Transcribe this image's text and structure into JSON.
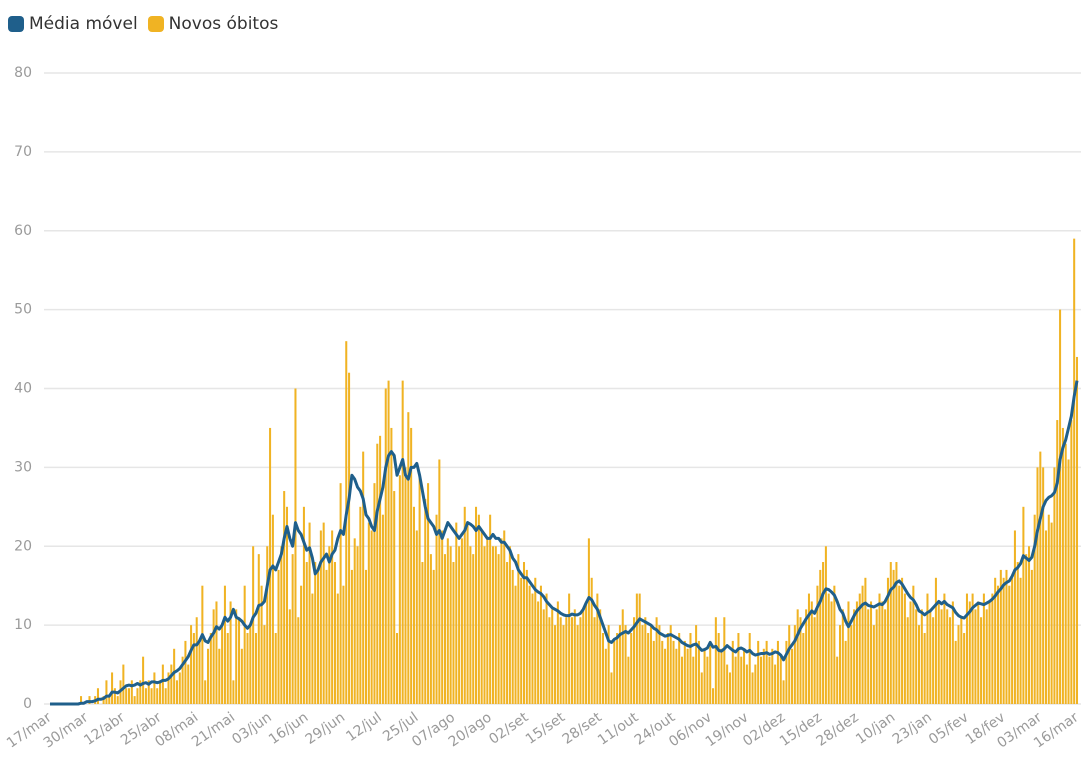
{
  "chart_data": {
    "type": "bar-line",
    "categories": [
      "17/mar",
      null,
      null,
      null,
      null,
      null,
      null,
      null,
      null,
      null,
      null,
      null,
      null,
      "30/mar",
      null,
      null,
      null,
      null,
      null,
      null,
      null,
      null,
      null,
      null,
      null,
      null,
      "12/abr",
      null,
      null,
      null,
      null,
      null,
      null,
      null,
      null,
      null,
      null,
      null,
      null,
      "25/abr",
      null,
      null,
      null,
      null,
      null,
      null,
      null,
      null,
      null,
      null,
      null,
      null,
      "08/mai",
      null,
      null,
      null,
      null,
      null,
      null,
      null,
      null,
      null,
      null,
      null,
      null,
      "21/mai",
      null,
      null,
      null,
      null,
      null,
      null,
      null,
      null,
      null,
      null,
      null,
      null,
      "03/jun",
      null,
      null,
      null,
      null,
      null,
      null,
      null,
      null,
      null,
      null,
      null,
      null,
      "16/jun",
      null,
      null,
      null,
      null,
      null,
      null,
      null,
      null,
      null,
      null,
      null,
      null,
      "29/jun",
      null,
      null,
      null,
      null,
      null,
      null,
      null,
      null,
      null,
      null,
      null,
      null,
      "12/jul",
      null,
      null,
      null,
      null,
      null,
      null,
      null,
      null,
      null,
      null,
      null,
      null,
      "25/jul",
      null,
      null,
      null,
      null,
      null,
      null,
      null,
      null,
      null,
      null,
      null,
      null,
      "07/ago",
      null,
      null,
      null,
      null,
      null,
      null,
      null,
      null,
      null,
      null,
      null,
      null,
      "20/ago",
      null,
      null,
      null,
      null,
      null,
      null,
      null,
      null,
      null,
      null,
      null,
      null,
      "02/set",
      null,
      null,
      null,
      null,
      null,
      null,
      null,
      null,
      null,
      null,
      null,
      null,
      "15/set",
      null,
      null,
      null,
      null,
      null,
      null,
      null,
      null,
      null,
      null,
      null,
      null,
      "28/set",
      null,
      null,
      null,
      null,
      null,
      null,
      null,
      null,
      null,
      null,
      null,
      null,
      "11/out",
      null,
      null,
      null,
      null,
      null,
      null,
      null,
      null,
      null,
      null,
      null,
      null,
      "24/out",
      null,
      null,
      null,
      null,
      null,
      null,
      null,
      null,
      null,
      null,
      null,
      null,
      "06/nov",
      null,
      null,
      null,
      null,
      null,
      null,
      null,
      null,
      null,
      null,
      null,
      null,
      "19/nov",
      null,
      null,
      null,
      null,
      null,
      null,
      null,
      null,
      null,
      null,
      null,
      null,
      "02/dez",
      null,
      null,
      null,
      null,
      null,
      null,
      null,
      null,
      null,
      null,
      null,
      null,
      "15/dez",
      null,
      null,
      null,
      null,
      null,
      null,
      null,
      null,
      null,
      null,
      null,
      null,
      "28/dez",
      null,
      null,
      null,
      null,
      null,
      null,
      null,
      null,
      null,
      null,
      null,
      null,
      "10/jan",
      null,
      null,
      null,
      null,
      null,
      null,
      null,
      null,
      null,
      null,
      null,
      null,
      "23/jan",
      null,
      null,
      null,
      null,
      null,
      null,
      null,
      null,
      null,
      null,
      null,
      null,
      "05/fev",
      null,
      null,
      null,
      null,
      null,
      null,
      null,
      null,
      null,
      null,
      null,
      null,
      "18/fev",
      null,
      null,
      null,
      null,
      null,
      null,
      null,
      null,
      null,
      null,
      null,
      null,
      "03/mar",
      null,
      null,
      null,
      null,
      null,
      null,
      null,
      null,
      null,
      null,
      null,
      null,
      "16/mar"
    ],
    "series": [
      {
        "name": "Média móvel",
        "type": "line",
        "color": "#1f5f8b",
        "values": [
          0,
          0,
          0,
          0,
          0,
          0,
          0,
          0,
          0,
          0,
          0,
          0.1,
          0.1,
          0.3,
          0.3,
          0.3,
          0.4,
          0.6,
          0.6,
          0.7,
          1,
          1,
          1.5,
          1.5,
          1.4,
          1.7,
          2,
          2.3,
          2.4,
          2.3,
          2.4,
          2.6,
          2.4,
          2.6,
          2.7,
          2.5,
          2.8,
          2.8,
          2.7,
          2.8,
          3,
          3,
          3.2,
          3.6,
          4,
          4.2,
          4.5,
          5,
          5.5,
          6,
          6.8,
          7.5,
          7.5,
          8,
          8.8,
          8,
          7.8,
          8.5,
          9,
          9.8,
          9.5,
          10,
          11,
          10.5,
          11,
          12,
          11,
          10.8,
          10.5,
          10,
          9.6,
          10,
          11,
          11.5,
          12.5,
          12.6,
          13,
          15,
          17,
          17.5,
          17,
          18,
          19,
          21,
          22.5,
          21,
          20,
          23,
          22,
          21.5,
          20.5,
          19.5,
          19.8,
          18.5,
          16.5,
          17,
          18,
          18.5,
          19,
          18,
          19,
          19.5,
          21,
          22,
          21.5,
          24,
          26,
          29,
          28.5,
          27.5,
          27,
          26,
          24,
          23.5,
          22.5,
          22,
          24.5,
          26,
          27.5,
          30,
          31.5,
          32,
          31.5,
          29,
          30,
          31,
          29,
          28.5,
          30,
          30,
          30.5,
          29,
          27,
          25,
          23.5,
          23,
          22.5,
          21.5,
          22,
          21,
          22,
          23,
          22.5,
          22,
          21.5,
          21,
          21.5,
          22,
          23,
          22.8,
          22.5,
          22,
          22.5,
          22,
          21.5,
          21,
          21,
          21.5,
          21,
          21,
          20.5,
          20.5,
          20,
          19.5,
          18.5,
          18,
          17,
          16.5,
          16,
          16,
          15.5,
          15,
          14.5,
          14.2,
          14,
          13.6,
          13,
          12.6,
          12.2,
          12,
          11.8,
          11.5,
          11.3,
          11.2,
          11.2,
          11.4,
          11.3,
          11.3,
          11.5,
          12,
          12.8,
          13.5,
          13.2,
          12.5,
          12,
          11,
          10,
          9,
          8,
          7.8,
          8.2,
          8.4,
          8.8,
          9,
          9.2,
          9,
          9.4,
          9.8,
          10.3,
          10.8,
          10.6,
          10.4,
          10.2,
          10,
          9.6,
          9.4,
          9,
          8.8,
          8.6,
          8.7,
          8.8,
          8.6,
          8.4,
          8.2,
          7.8,
          7.6,
          7.4,
          7.3,
          7.5,
          7.6,
          7.2,
          6.8,
          6.9,
          7.1,
          7.8,
          7.2,
          7.3,
          6.8,
          6.7,
          7,
          7.4,
          7.1,
          6.8,
          6.6,
          7,
          7.1,
          6.9,
          6.6,
          6.8,
          6.4,
          6.2,
          6.3,
          6.4,
          6.4,
          6.5,
          6.3,
          6.4,
          6.6,
          6.5,
          6.2,
          5.6,
          6.3,
          7,
          7.5,
          8,
          8.8,
          9.6,
          10.2,
          10.8,
          11.3,
          11.8,
          11.5,
          12.3,
          13,
          14,
          14.6,
          14.5,
          14.2,
          13.8,
          13,
          12,
          11.5,
          10.5,
          9.8,
          10.5,
          11.2,
          11.8,
          12.2,
          12.6,
          12.8,
          12.5,
          12.4,
          12.3,
          12.5,
          12.7,
          12.6,
          13,
          13.7,
          14.5,
          14.8,
          15.4,
          15.6,
          15.2,
          14.6,
          14,
          13.5,
          13.2,
          12.6,
          11.8,
          11.6,
          11.3,
          11.6,
          11.8,
          12.2,
          12.6,
          13,
          12.7,
          13,
          12.6,
          12.4,
          12.2,
          11.6,
          11.2,
          11,
          10.9,
          11.3,
          11.7,
          12.2,
          12.5,
          12.8,
          12.7,
          12.6,
          12.8,
          13,
          13.3,
          13.7,
          14.2,
          14.6,
          15.1,
          15.4,
          15.6,
          16.2,
          17,
          17.3,
          17.8,
          18.8,
          18.5,
          18.2,
          18.6,
          20,
          22,
          23.5,
          25,
          25.8,
          26.2,
          26.4,
          26.8,
          28,
          31,
          32.5,
          33.5,
          35,
          36.5,
          39,
          41
        ]
      },
      {
        "name": "Novos óbitos",
        "type": "bar",
        "color": "#f0b323",
        "values": [
          0,
          0,
          0,
          0,
          0,
          0,
          0,
          0,
          0,
          0,
          0,
          1,
          0,
          0,
          1,
          0,
          1,
          2,
          0,
          1,
          3,
          1,
          4,
          2,
          1,
          3,
          5,
          2,
          2,
          3,
          1,
          2,
          3,
          6,
          2,
          3,
          2,
          4,
          2,
          3,
          5,
          2,
          4,
          5,
          7,
          3,
          4,
          6,
          8,
          5,
          10,
          9,
          11,
          8,
          15,
          3,
          7,
          9,
          12,
          13,
          7,
          10,
          15,
          9,
          13,
          3,
          12,
          11,
          7,
          15,
          9,
          10,
          20,
          9,
          19,
          15,
          10,
          20,
          35,
          24,
          9,
          17,
          20,
          27,
          25,
          12,
          19,
          40,
          11,
          15,
          25,
          18,
          23,
          14,
          18,
          17,
          22,
          23,
          17,
          20,
          22,
          18,
          14,
          28,
          15,
          46,
          42,
          17,
          21,
          20,
          25,
          32,
          17,
          23,
          22,
          28,
          33,
          34,
          24,
          40,
          41,
          35,
          27,
          9,
          29,
          41,
          30,
          37,
          35,
          25,
          22,
          29,
          18,
          26,
          28,
          19,
          17,
          24,
          31,
          22,
          19,
          21,
          20,
          18,
          23,
          20,
          21,
          25,
          23,
          20,
          19,
          25,
          24,
          22,
          20,
          21,
          24,
          20,
          20,
          19,
          21,
          22,
          18,
          20,
          17,
          15,
          19,
          16,
          18,
          17,
          15,
          14,
          16,
          13,
          15,
          12,
          14,
          11,
          12,
          10,
          13,
          11,
          10,
          11,
          14,
          11,
          12,
          10,
          11,
          12,
          13,
          21,
          16,
          11,
          14,
          12,
          9,
          7,
          10,
          4,
          8,
          9,
          10,
          12,
          10,
          6,
          9,
          11,
          14,
          14,
          10,
          11,
          9,
          10,
          8,
          11,
          10,
          8,
          7,
          9,
          10,
          8,
          7,
          9,
          6,
          8,
          7,
          9,
          6,
          10,
          8,
          4,
          7,
          6,
          8,
          2,
          11,
          9,
          7,
          11,
          5,
          4,
          8,
          6,
          9,
          6,
          7,
          5,
          9,
          4,
          5,
          8,
          6,
          7,
          8,
          6,
          7,
          5,
          8,
          6,
          3,
          8,
          10,
          7,
          10,
          12,
          11,
          9,
          12,
          14,
          13,
          11,
          15,
          17,
          18,
          20,
          14,
          13,
          15,
          6,
          10,
          12,
          8,
          13,
          10,
          12,
          13,
          14,
          15,
          16,
          12,
          13,
          10,
          12,
          14,
          13,
          12,
          16,
          18,
          17,
          18,
          15,
          16,
          14,
          11,
          13,
          15,
          12,
          10,
          12,
          9,
          14,
          12,
          11,
          16,
          13,
          12,
          14,
          12,
          11,
          13,
          8,
          10,
          11,
          9,
          14,
          13,
          14,
          12,
          13,
          11,
          14,
          12,
          13,
          14,
          16,
          15,
          17,
          16,
          17,
          15,
          16,
          22,
          18,
          16,
          25,
          19,
          20,
          17,
          24,
          30,
          32,
          30,
          22,
          24,
          23,
          30,
          36,
          50,
          35,
          33,
          31,
          36,
          59,
          44
        ]
      }
    ],
    "ylim": [
      0,
      80
    ],
    "yticks": [
      0,
      10,
      20,
      30,
      40,
      50,
      60,
      70,
      80
    ],
    "grid": true
  }
}
